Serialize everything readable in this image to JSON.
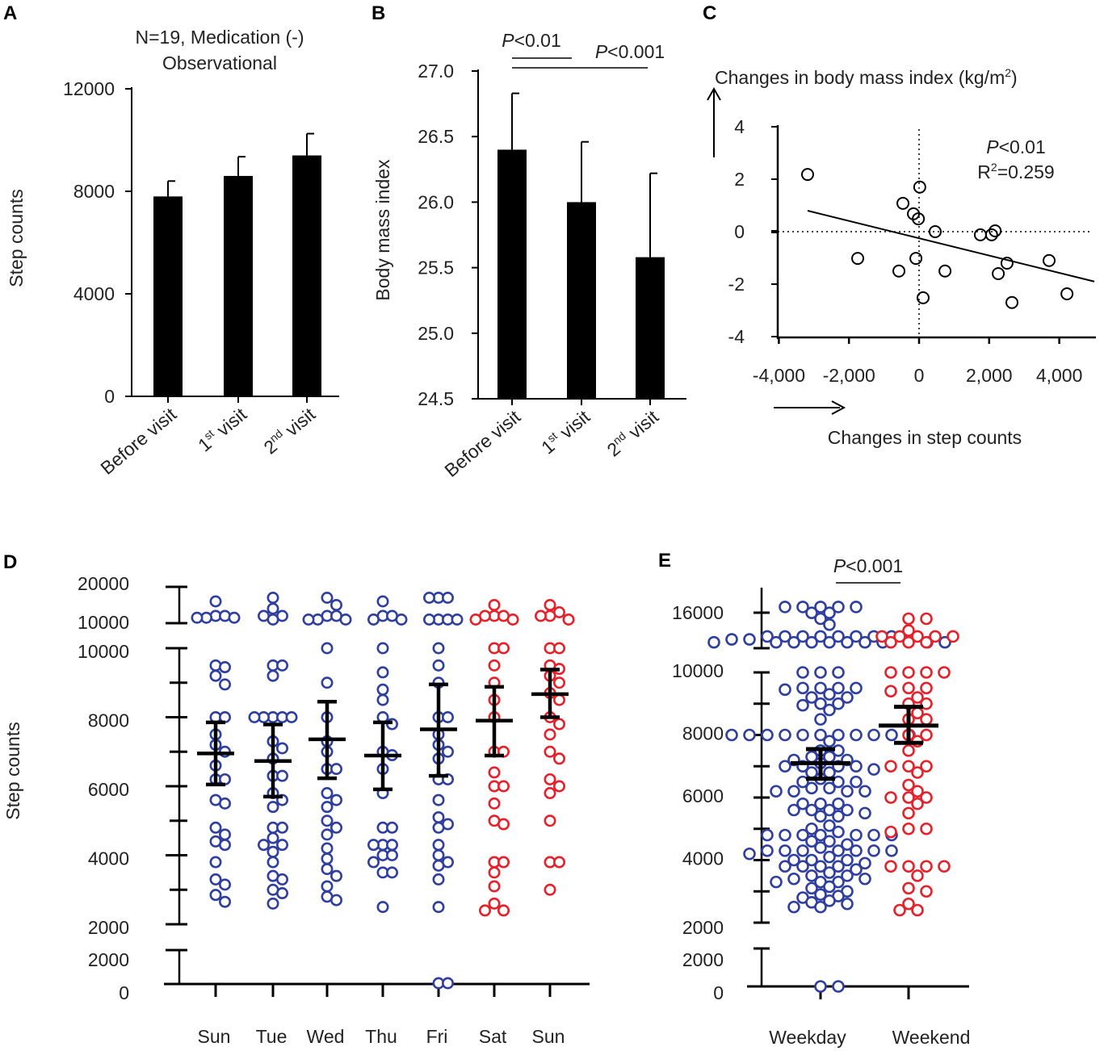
{
  "panels": [
    "A",
    "B",
    "C",
    "D",
    "E"
  ],
  "colors": {
    "weekday": "#2f3f9f",
    "weekend": "#e8202a",
    "bar": "#000000"
  },
  "chart_data": [
    {
      "type": "bar",
      "title_line1": "N=19, Medication (-)",
      "title_line2": "Observational",
      "ylabel": "Step counts",
      "ylim": [
        0,
        12000
      ],
      "yticks": [
        0,
        4000,
        8000,
        12000
      ],
      "categories": [
        {
          "parts": [
            {
              "t": "Before visit"
            }
          ]
        },
        {
          "parts": [
            {
              "t": "1"
            },
            {
              "t": "st",
              "sup": true
            },
            {
              "t": " visit"
            }
          ]
        },
        {
          "parts": [
            {
              "t": "2"
            },
            {
              "t": "nd",
              "sup": true
            },
            {
              "t": " visit"
            }
          ]
        }
      ],
      "values": [
        7800,
        8600,
        9400
      ],
      "sem": [
        600,
        750,
        850
      ]
    },
    {
      "type": "bar",
      "ylabel": "Body mass index",
      "ylim": [
        24.5,
        27.0
      ],
      "yticks": [
        "24.5",
        "25.0",
        "25.5",
        "26.0",
        "26.5",
        "27.0"
      ],
      "categories": [
        {
          "parts": [
            {
              "t": "Before visit"
            }
          ]
        },
        {
          "parts": [
            {
              "t": "1"
            },
            {
              "t": "st",
              "sup": true
            },
            {
              "t": " visit"
            }
          ]
        },
        {
          "parts": [
            {
              "t": "2"
            },
            {
              "t": "nd",
              "sup": true
            },
            {
              "t": " visit"
            }
          ]
        }
      ],
      "values": [
        26.4,
        26.0,
        25.58
      ],
      "sem": [
        0.43,
        0.46,
        0.64
      ],
      "significance": [
        {
          "from": 0,
          "to": 1,
          "parts": [
            {
              "t": "P",
              "it": true
            },
            {
              "t": "<0.01"
            }
          ]
        },
        {
          "from": 0,
          "to": 2,
          "parts": [
            {
              "t": "P",
              "it": true
            },
            {
              "t": "<0.001"
            }
          ]
        }
      ]
    },
    {
      "type": "scatter",
      "ylabel_parts": [
        {
          "t": "Changes in body mass index (kg/m"
        },
        {
          "t": "2",
          "sup": true
        },
        {
          "t": ")"
        }
      ],
      "xlabel": "Changes in step counts",
      "xlim": [
        -4000,
        5000
      ],
      "ylim": [
        -4,
        4
      ],
      "xticks": [
        {
          "v": -4000,
          "label": "-4,000"
        },
        {
          "v": -2000,
          "label": "-2,000"
        },
        {
          "v": 0,
          "label": "0"
        },
        {
          "v": 2000,
          "label": "2,000"
        },
        {
          "v": 4000,
          "label": "4,000"
        }
      ],
      "yticks": [
        {
          "v": 4,
          "label": "4"
        },
        {
          "v": 2,
          "label": "2"
        },
        {
          "v": 0,
          "label": "0"
        },
        {
          "v": -2,
          "label": "-2"
        },
        {
          "v": -4,
          "label": "-4"
        }
      ],
      "points": [
        [
          -3180,
          2.18
        ],
        [
          -1750,
          -1.02
        ],
        [
          -575,
          -1.5
        ],
        [
          -460,
          1.08
        ],
        [
          -160,
          0.68
        ],
        [
          -20,
          0.49
        ],
        [
          20,
          1.7
        ],
        [
          -90,
          -1.02
        ],
        [
          115,
          -2.52
        ],
        [
          460,
          0.0
        ],
        [
          740,
          -1.5
        ],
        [
          1750,
          -0.12
        ],
        [
          2070,
          -0.12
        ],
        [
          2170,
          0.03
        ],
        [
          2510,
          -1.2
        ],
        [
          2260,
          -1.6
        ],
        [
          2650,
          -2.7
        ],
        [
          3710,
          -1.1
        ],
        [
          4220,
          -2.37
        ]
      ],
      "regression": {
        "x_range": [
          -3180,
          5000
        ],
        "slope": -0.00033,
        "intercept": -0.25
      },
      "p_parts": [
        {
          "t": "P",
          "it": true
        },
        {
          "t": "<0.01"
        }
      ],
      "r2_parts": [
        {
          "t": "R"
        },
        {
          "t": "2",
          "sup": true
        },
        {
          "t": "=0.259"
        }
      ]
    },
    {
      "type": "scatter",
      "ylabel": "Step counts",
      "y_segments": [
        {
          "range": [
            10000,
            20000
          ],
          "ticks": [
            "10000",
            "20000"
          ]
        },
        {
          "range": [
            2000,
            10000
          ],
          "ticks": [
            "2000",
            "4000",
            "6000",
            "8000",
            "10000"
          ]
        },
        {
          "range": [
            0,
            2000
          ],
          "ticks": [
            "0",
            "2000"
          ]
        }
      ],
      "days": [
        {
          "label": "Sun",
          "group": "weekday",
          "mean": 6950,
          "sem_low": 6050,
          "sem_high": 7850,
          "values": [
            16000,
            12000,
            12000,
            11500,
            11500,
            11500,
            9500,
            9450,
            9200,
            8950,
            8000,
            8000,
            7500,
            7200,
            7000,
            6600,
            6200,
            6200,
            5600,
            5500,
            4800,
            4600,
            4400,
            4300,
            3800,
            3300,
            3150,
            2850,
            2650
          ]
        },
        {
          "label": "Tue",
          "group": "weekday",
          "mean": 6730,
          "sem_low": 5700,
          "sem_high": 7790,
          "values": [
            17000,
            14000,
            12000,
            12000,
            11000,
            9500,
            9500,
            9200,
            8000,
            8000,
            8000,
            8000,
            8000,
            7300,
            7100,
            6800,
            6300,
            6300,
            5800,
            5600,
            5400,
            4800,
            4800,
            4500,
            4300,
            4300,
            4100,
            3800,
            3400,
            3300,
            3000,
            2900,
            2600
          ]
        },
        {
          "label": "Wed",
          "group": "weekday",
          "mean": 7360,
          "sem_low": 6230,
          "sem_high": 8450,
          "values": [
            17000,
            15000,
            12000,
            12000,
            11000,
            11000,
            11000,
            10000,
            9000,
            8000,
            7300,
            7000,
            6500,
            6500,
            5800,
            5600,
            5400,
            5000,
            4800,
            4600,
            4200,
            3900,
            3600,
            3400,
            3100,
            2800,
            2700
          ]
        },
        {
          "label": "Thu",
          "group": "weekday",
          "mean": 6890,
          "sem_low": 5910,
          "sem_high": 7850,
          "values": [
            16000,
            12000,
            12000,
            11000,
            11000,
            10000,
            9300,
            8800,
            8500,
            8000,
            7800,
            7000,
            6900,
            6500,
            5800,
            4800,
            4800,
            4300,
            4300,
            4300,
            4000,
            4000,
            3800,
            3500,
            3500,
            2500
          ]
        },
        {
          "label": "Fri",
          "group": "weekday",
          "mean": 7650,
          "sem_low": 6300,
          "sem_high": 8950,
          "values": [
            17000,
            17000,
            17000,
            11000,
            11000,
            11000,
            11000,
            10000,
            9500,
            9000,
            8000,
            8000,
            7500,
            7200,
            7000,
            6800,
            6200,
            6200,
            5600,
            5100,
            4900,
            4800,
            4300,
            4000,
            3800,
            3700,
            3300,
            2500,
            0,
            0
          ]
        },
        {
          "label": "Sat",
          "group": "weekend",
          "mean": 7900,
          "sem_low": 6890,
          "sem_high": 8880,
          "values": [
            15000,
            12000,
            12000,
            12000,
            11000,
            11000,
            10000,
            10000,
            9500,
            9000,
            8500,
            8000,
            7000,
            7000,
            6400,
            6000,
            6000,
            5500,
            5000,
            4900,
            3800,
            3800,
            3500,
            3100,
            2600,
            2400,
            2400
          ]
        },
        {
          "label": "Sun",
          "group": "weekend",
          "mean": 8670,
          "sem_low": 8000,
          "sem_high": 9380,
          "values": [
            15000,
            13000,
            12000,
            12000,
            11000,
            10000,
            10000,
            9500,
            9400,
            9200,
            9000,
            8700,
            8500,
            8000,
            7800,
            7500,
            7000,
            6800,
            6200,
            6000,
            5800,
            5000,
            3800,
            3800,
            3000
          ]
        }
      ]
    },
    {
      "type": "scatter",
      "y_segments": [
        {
          "range": [
            10000,
            20000
          ],
          "ticks": [
            "16000"
          ]
        },
        {
          "range": [
            2000,
            10000
          ],
          "ticks": [
            "2000",
            "4000",
            "6000",
            "8000",
            "10000"
          ]
        },
        {
          "range": [
            0,
            2000
          ],
          "ticks": [
            "0",
            "2000"
          ]
        }
      ],
      "groups": [
        {
          "label": "Weekday",
          "group": "weekday",
          "mean": 7100,
          "sem_low": 6600,
          "sem_high": 7550,
          "source_days": [
            0,
            1,
            2,
            3,
            4
          ]
        },
        {
          "label": "Weekend",
          "group": "weekend",
          "mean": 8300,
          "sem_low": 7750,
          "sem_high": 8900,
          "source_days": [
            5,
            6
          ]
        }
      ],
      "significance_parts": [
        {
          "t": "P",
          "it": true
        },
        {
          "t": "<0.001"
        }
      ]
    }
  ]
}
